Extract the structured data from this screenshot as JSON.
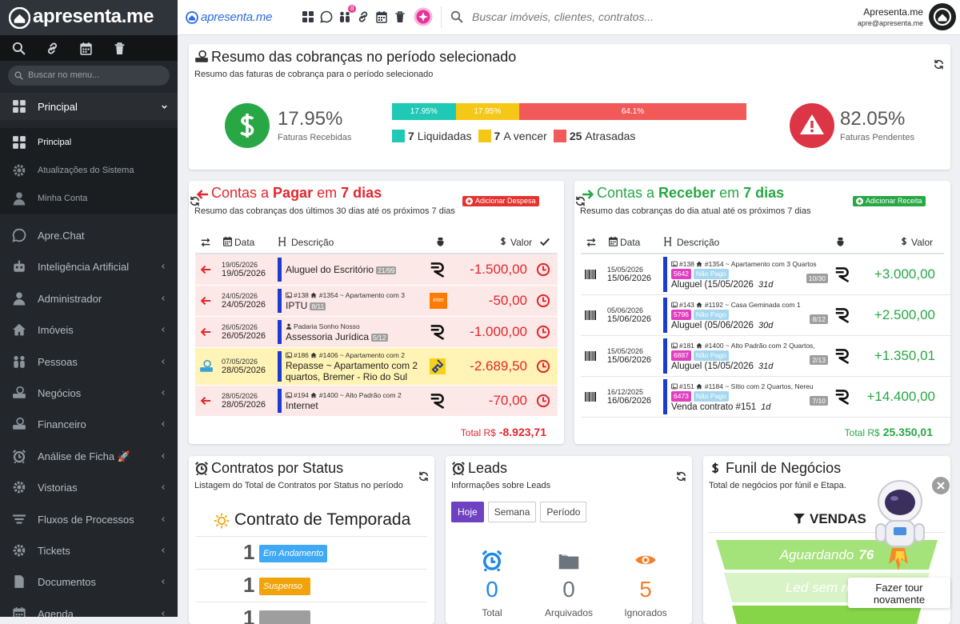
{
  "sidebar": {
    "brand": "apresenta.me",
    "search_placeholder": "Buscar no menu...",
    "active_group": "Principal",
    "submenu": [
      "Principal",
      "Atualizações do Sistema",
      "Minha Conta"
    ],
    "menu": [
      "Apre.Chat",
      "Inteligência Artificial",
      "Administrador",
      "Imóveis",
      "Pessoas",
      "Negócios",
      "Financeiro",
      "Análise de Ficha 🚀",
      "Vistorias",
      "Fluxos de Processos",
      "Tickets",
      "Documentos",
      "Agenda"
    ]
  },
  "topbar": {
    "brand": "apresenta.me",
    "badge": "8",
    "search_placeholder": "Buscar imóveis, clientes, contratos...",
    "user_name": "Apresenta.me",
    "user_email": "apre@apresenta.me"
  },
  "summary": {
    "title": "Resumo das cobranças no período selecionado",
    "subtitle": "Resumo das faturas de cobrança para o período selecionado",
    "received": {
      "value": "17.95%",
      "label": "Faturas Recebidas"
    },
    "pending": {
      "value": "82.05%",
      "label": "Faturas Pendentes"
    },
    "segments": [
      {
        "value": 17.95,
        "label": "17.95%",
        "color": "#20c9b5"
      },
      {
        "value": 17.95,
        "label": "17.95%",
        "color": "#f5c818"
      },
      {
        "value": 64.1,
        "label": "64.1%",
        "color": "#f25a5a"
      }
    ],
    "legend": [
      {
        "count": "7",
        "label": "Liquidadas"
      },
      {
        "count": "7",
        "label": "A vencer"
      },
      {
        "count": "25",
        "label": "Atrasadas"
      }
    ]
  },
  "payables": {
    "title_parts": [
      "Contas a",
      "Pagar",
      "em",
      "7 dias"
    ],
    "button": "Adicionar Despesa",
    "subtitle": "Resumo das cobranças dos últimos 30 dias até os próximos 7 dias",
    "columns": [
      "Data",
      "Descrição",
      "Valor"
    ],
    "rows": [
      {
        "date_due": "19/05/2026",
        "date": "19/05/2026",
        "description": "Aluguel do Escritório",
        "installment": "21/99",
        "amount": "-1.500,00",
        "logo": "r",
        "highlight": false
      },
      {
        "date_due": "24/05/2026",
        "date": "24/05/2026",
        "contract": "#138",
        "property": "#1354 ~ Apartamento com 3",
        "description": "IPTU",
        "installment": "8/11",
        "amount": "-50,00",
        "logo": "inter",
        "highlight": false
      },
      {
        "date_due": "26/05/2026",
        "date": "26/05/2026",
        "person": "Padaria Sonho Nosso",
        "description": "Assessoria Jurídica",
        "installment": "5/12",
        "amount": "-1.000,00",
        "logo": "r",
        "highlight": false
      },
      {
        "date_due": "07/05/2026",
        "date": "28/05/2026",
        "contract": "#186",
        "property": "#1406 ~ Apartamento com 2",
        "description": "Repasse ~ Apartamento com 2 quartos, Bremer - Rio do Sul",
        "amount": "-2.689,50",
        "logo": "bb",
        "highlight": true
      },
      {
        "date_due": "28/05/2026",
        "date": "28/05/2026",
        "contract": "#194",
        "property": "#1400 ~ Alto Padrão com 2",
        "description": "Internet",
        "amount": "-70,00",
        "logo": "r",
        "highlight": false
      }
    ],
    "total_label": "Total R$",
    "total": "-8.923,71"
  },
  "receivables": {
    "title_parts": [
      "Contas a",
      "Receber",
      "em",
      "7 dias"
    ],
    "button": "Adicionar Receita",
    "subtitle": "Resumo das cobranças do dia atual até os próximos 7 dias",
    "columns": [
      "Data",
      "Descrição",
      "Valor"
    ],
    "rows": [
      {
        "date_due": "15/05/2026",
        "date": "15/06/2026",
        "contract": "#138",
        "property": "#1354 ~ Apartamento com 3 Quartos",
        "invoice": "5642",
        "status": "Não Pago",
        "description": "Aluguel (15/05/2026",
        "days": "31d",
        "installment": "10/30",
        "amount": "+3.000,00"
      },
      {
        "date_due": "05/06/2026",
        "date": "15/06/2026",
        "contract": "#143",
        "property": "#1192 ~ Casa Geminada com 1",
        "invoice": "5796",
        "status": "Não Pago",
        "description": "Aluguel (05/06/2026",
        "days": "30d",
        "installment": "8/12",
        "amount": "+2.500,00"
      },
      {
        "date_due": "15/05/2026",
        "date": "15/06/2026",
        "contract": "#181",
        "property": "#1400 ~ Alto Padrão com 2 Quartos,",
        "invoice": "6887",
        "status": "Não Pago",
        "description": "Aluguel (15/05/2026",
        "days": "31d",
        "installment": "2/13",
        "amount": "+1.350,01"
      },
      {
        "date_due": "16/12/2025",
        "date": "16/06/2026",
        "contract": "#151",
        "property": "#1184 ~ Sítio com 2 Quartos, Nereu",
        "invoice": "6473",
        "status": "Não Pago",
        "description": "Venda contrato #151",
        "days": "1d",
        "installment": "7/10",
        "amount": "+14.400,00"
      }
    ],
    "total_label": "Total R$",
    "total": "25.350,01"
  },
  "contracts": {
    "title": "Contratos por Status",
    "subtitle": "Listagem do Total de Contratos por Status no período",
    "heading": "Contrato de Temporada",
    "rows": [
      {
        "count": "1",
        "status": "Em Andamento",
        "color": "#3fa9f5"
      },
      {
        "count": "1",
        "status": "Suspenso",
        "color": "#f0a30a"
      },
      {
        "count": "1",
        "color": "#9e9e9e"
      }
    ]
  },
  "leads": {
    "title": "Leads",
    "subtitle": "Informações sobre Leads",
    "tabs": [
      "Hoje",
      "Semana",
      "Período"
    ],
    "stats": [
      {
        "value": "0",
        "label": "Total",
        "color": "#1e88e5"
      },
      {
        "value": "0",
        "label": "Arquivados",
        "color": "#6c757d"
      },
      {
        "value": "5",
        "label": "Ignorados",
        "color": "#f0812c"
      }
    ]
  },
  "funnel": {
    "title": "Funil de Negócios",
    "subtitle": "Total de negócios por fúnil e Etapa.",
    "name": "VENDAS",
    "stages": [
      {
        "label": "Aguardando",
        "value": "76",
        "color": "#a4e27a"
      },
      {
        "label": "Led sem resp",
        "color": "#d8f3c6"
      },
      {
        "color": "#86d448"
      }
    ]
  },
  "tour": {
    "label": "Fazer tour novamente"
  }
}
